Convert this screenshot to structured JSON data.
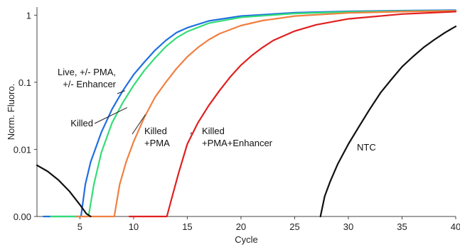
{
  "chart_data": {
    "type": "line",
    "xlabel": "Cycle",
    "ylabel": "Norm. Fluoro.",
    "xlim": [
      1,
      40
    ],
    "y_scale": "log",
    "x_ticks": [
      5,
      10,
      15,
      20,
      25,
      30,
      35,
      40
    ],
    "y_ticks": [
      {
        "value": 0.001,
        "label": "0.00"
      },
      {
        "value": 0.01,
        "label": "0.01"
      },
      {
        "value": 0.1,
        "label": "0.1"
      },
      {
        "value": 1,
        "label": "1"
      }
    ],
    "series": [
      {
        "color": "#1f6fe0",
        "points": [
          [
            5.1,
            0.001
          ],
          [
            5.5,
            0.003
          ],
          [
            6,
            0.0065
          ],
          [
            7,
            0.018
          ],
          [
            8,
            0.04
          ],
          [
            9,
            0.075
          ],
          [
            10,
            0.13
          ],
          [
            11,
            0.2
          ],
          [
            12,
            0.3
          ],
          [
            13,
            0.42
          ],
          [
            14,
            0.55
          ],
          [
            15,
            0.65
          ],
          [
            17,
            0.82
          ],
          [
            20,
            0.97
          ],
          [
            25,
            1.09
          ],
          [
            30,
            1.14
          ],
          [
            35,
            1.17
          ],
          [
            40,
            1.19
          ]
        ]
      },
      {
        "color": "#33dd77",
        "points": [
          [
            5.8,
            0.001
          ],
          [
            6.3,
            0.003
          ],
          [
            7,
            0.009
          ],
          [
            8,
            0.025
          ],
          [
            9,
            0.05
          ],
          [
            10,
            0.09
          ],
          [
            11,
            0.15
          ],
          [
            12,
            0.23
          ],
          [
            13,
            0.34
          ],
          [
            14,
            0.46
          ],
          [
            15,
            0.57
          ],
          [
            17,
            0.76
          ],
          [
            20,
            0.93
          ],
          [
            25,
            1.06
          ],
          [
            30,
            1.12
          ],
          [
            35,
            1.15
          ],
          [
            40,
            1.17
          ]
        ]
      },
      {
        "color": "#f08040",
        "points": [
          [
            8.2,
            0.001
          ],
          [
            8.7,
            0.003
          ],
          [
            9.3,
            0.0065
          ],
          [
            10,
            0.013
          ],
          [
            11,
            0.03
          ],
          [
            12,
            0.06
          ],
          [
            13,
            0.1
          ],
          [
            14,
            0.16
          ],
          [
            15,
            0.24
          ],
          [
            16,
            0.33
          ],
          [
            17,
            0.43
          ],
          [
            18,
            0.53
          ],
          [
            20,
            0.7
          ],
          [
            22,
            0.83
          ],
          [
            25,
            0.97
          ],
          [
            30,
            1.08
          ],
          [
            35,
            1.13
          ],
          [
            40,
            1.16
          ]
        ]
      },
      {
        "color": "#e02020",
        "points": [
          [
            13.1,
            0.001
          ],
          [
            13.6,
            0.002
          ],
          [
            14.2,
            0.0045
          ],
          [
            15,
            0.012
          ],
          [
            16,
            0.025
          ],
          [
            17,
            0.045
          ],
          [
            18,
            0.075
          ],
          [
            19,
            0.12
          ],
          [
            20,
            0.18
          ],
          [
            21,
            0.25
          ],
          [
            22,
            0.33
          ],
          [
            23,
            0.42
          ],
          [
            25,
            0.58
          ],
          [
            27,
            0.72
          ],
          [
            30,
            0.88
          ],
          [
            35,
            1.04
          ],
          [
            40,
            1.13
          ]
        ]
      },
      {
        "color": "#111111",
        "points": [
          [
            1,
            0.0058
          ],
          [
            2,
            0.0047
          ],
          [
            3,
            0.0035
          ],
          [
            4,
            0.0024
          ],
          [
            5,
            0.0015
          ],
          [
            5.6,
            0.0011
          ],
          [
            6,
            0.001
          ]
        ]
      },
      {
        "color": "#111111",
        "points": [
          [
            27.4,
            0.001
          ],
          [
            27.8,
            0.002
          ],
          [
            28.3,
            0.0033
          ],
          [
            29,
            0.006
          ],
          [
            30,
            0.012
          ],
          [
            31,
            0.022
          ],
          [
            32,
            0.04
          ],
          [
            33,
            0.07
          ],
          [
            34,
            0.11
          ],
          [
            35,
            0.17
          ],
          [
            36,
            0.24
          ],
          [
            37,
            0.33
          ],
          [
            38,
            0.43
          ],
          [
            39,
            0.55
          ],
          [
            40,
            0.68
          ]
        ]
      }
    ],
    "annotations": [
      {
        "lines": [
          "Live, +/- PMA,",
          "+/- Enhancer"
        ],
        "pointer_x": 9.2,
        "pointer_y": 0.075
      },
      {
        "lines": [
          "Killed"
        ],
        "pointer_x": 9.4,
        "pointer_y": 0.042
      },
      {
        "lines": [
          "Killed",
          "+PMA"
        ],
        "pointer_x": 11.1,
        "pointer_y": 0.033
      },
      {
        "lines": [
          "Killed",
          "+PMA+Enhancer"
        ],
        "pointer_x": 15.4,
        "pointer_y": 0.018
      },
      {
        "lines": [
          "NTC"
        ],
        "pointer_x": 29.9,
        "pointer_y": 0.011
      }
    ],
    "grid": false,
    "legend": "none"
  }
}
